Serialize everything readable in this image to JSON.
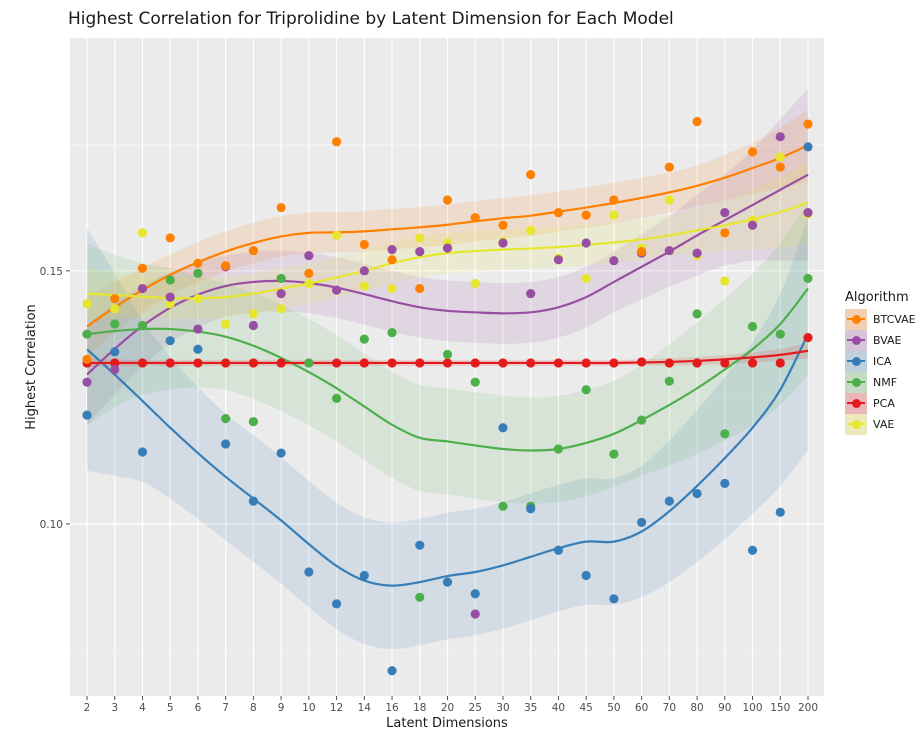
{
  "chart_data": {
    "type": "scatter",
    "title": "Highest Correlation for Triprolidine by Latent Dimension for Each Model",
    "xlabel": "Latent Dimensions",
    "ylabel": "Highest Correlation",
    "categories": [
      "2",
      "3",
      "4",
      "5",
      "6",
      "7",
      "8",
      "9",
      "10",
      "12",
      "14",
      "16",
      "18",
      "20",
      "25",
      "30",
      "35",
      "40",
      "45",
      "50",
      "60",
      "70",
      "80",
      "90",
      "100",
      "150",
      "200"
    ],
    "ylim": [
      0.066,
      0.196
    ],
    "y_ticks": [
      0.1,
      0.15
    ],
    "y_tick_labels": [
      "0.10",
      "0.15"
    ],
    "grid": true,
    "legend_position": "right",
    "legend_title": "Algorithm",
    "series": [
      {
        "name": "BTCVAE",
        "color": "#ff7f00",
        "points": [
          0.1325,
          0.1445,
          0.1505,
          0.1565,
          0.1515,
          0.151,
          0.154,
          0.1625,
          0.1495,
          0.1755,
          0.1552,
          0.1522,
          0.1465,
          0.164,
          0.1605,
          0.159,
          0.169,
          0.1615,
          0.161,
          0.164,
          0.1538,
          0.1705,
          0.1795,
          0.1575,
          0.1735,
          0.1705,
          0.179
        ],
        "smooth": [
          0.139,
          0.1428,
          0.1462,
          0.1492,
          0.1517,
          0.1538,
          0.1555,
          0.1568,
          0.1575,
          0.1576,
          0.1578,
          0.1582,
          0.1586,
          0.1591,
          0.1598,
          0.1604,
          0.1609,
          0.1617,
          0.1625,
          0.1634,
          0.1644,
          0.1655,
          0.1668,
          0.1684,
          0.1703,
          0.1723,
          0.1748
        ],
        "se": [
          0.006,
          0.005,
          0.0045,
          0.004,
          0.004,
          0.004,
          0.004,
          0.004,
          0.004,
          0.004,
          0.004,
          0.004,
          0.004,
          0.004,
          0.004,
          0.004,
          0.004,
          0.004,
          0.004,
          0.004,
          0.004,
          0.004,
          0.004,
          0.0045,
          0.005,
          0.006,
          0.007
        ]
      },
      {
        "name": "BVAE",
        "color": "#984ea3",
        "points": [
          0.128,
          0.1305,
          0.1465,
          0.1448,
          0.1385,
          0.1508,
          0.1392,
          0.1455,
          0.153,
          0.1462,
          0.15,
          0.1542,
          0.1538,
          0.1545,
          0.0822,
          0.1555,
          0.1455,
          0.1522,
          0.1555,
          0.152,
          0.1535,
          0.154,
          0.1535,
          0.1615,
          0.159,
          0.1765,
          0.1615
        ],
        "smooth": [
          0.1295,
          0.1346,
          0.1391,
          0.1427,
          0.1453,
          0.147,
          0.1478,
          0.148,
          0.1476,
          0.1467,
          0.1454,
          0.144,
          0.1428,
          0.1421,
          0.1418,
          0.1416,
          0.1418,
          0.1428,
          0.1448,
          0.1478,
          0.1508,
          0.1538,
          0.157,
          0.16,
          0.163,
          0.166,
          0.169
        ],
        "se": [
          0.01,
          0.009,
          0.008,
          0.007,
          0.0065,
          0.006,
          0.006,
          0.006,
          0.006,
          0.006,
          0.006,
          0.006,
          0.006,
          0.006,
          0.006,
          0.006,
          0.006,
          0.006,
          0.006,
          0.006,
          0.0065,
          0.007,
          0.008,
          0.009,
          0.011,
          0.014,
          0.017
        ]
      },
      {
        "name": "ICA",
        "color": "#377eb8",
        "points": [
          0.1215,
          0.134,
          0.1142,
          0.1362,
          0.1345,
          0.1158,
          0.1045,
          0.114,
          0.0905,
          0.0842,
          0.0898,
          0.071,
          0.0958,
          0.0885,
          0.0862,
          0.119,
          0.103,
          0.0948,
          0.0898,
          0.0852,
          0.1003,
          0.1045,
          0.106,
          0.108,
          0.0948,
          0.1023,
          0.1745
        ],
        "smooth": [
          0.1345,
          0.1295,
          0.1243,
          0.119,
          0.114,
          0.1093,
          0.105,
          0.1007,
          0.096,
          0.0917,
          0.0888,
          0.0878,
          0.0885,
          0.0897,
          0.0905,
          0.0918,
          0.0935,
          0.0952,
          0.0965,
          0.0965,
          0.0985,
          0.1025,
          0.1075,
          0.113,
          0.119,
          0.1265,
          0.1375
        ],
        "se": [
          0.024,
          0.02,
          0.016,
          0.014,
          0.013,
          0.0125,
          0.0125,
          0.0125,
          0.0125,
          0.0125,
          0.0125,
          0.0125,
          0.0125,
          0.0125,
          0.0125,
          0.0125,
          0.0125,
          0.0125,
          0.0125,
          0.0125,
          0.013,
          0.014,
          0.015,
          0.016,
          0.017,
          0.019,
          0.023
        ]
      },
      {
        "name": "NMF",
        "color": "#4daf4a",
        "points": [
          0.1375,
          0.1395,
          0.1392,
          0.1482,
          0.1495,
          0.1208,
          0.1202,
          0.1485,
          0.1318,
          0.1248,
          0.1365,
          0.1378,
          0.0855,
          0.1335,
          0.128,
          0.1035,
          0.1035,
          0.1148,
          0.1265,
          0.1138,
          0.1205,
          0.1282,
          0.1415,
          0.1178,
          0.139,
          0.1375,
          0.1485
        ],
        "smooth": [
          0.1375,
          0.1381,
          0.1385,
          0.1385,
          0.138,
          0.137,
          0.1352,
          0.1328,
          0.13,
          0.1268,
          0.1232,
          0.1196,
          0.117,
          0.1163,
          0.1155,
          0.1148,
          0.1145,
          0.1148,
          0.116,
          0.1178,
          0.1205,
          0.1235,
          0.1268,
          0.1305,
          0.1345,
          0.1395,
          0.1465
        ],
        "se": [
          0.018,
          0.015,
          0.013,
          0.012,
          0.011,
          0.0105,
          0.0105,
          0.0105,
          0.0105,
          0.0105,
          0.0105,
          0.0105,
          0.0105,
          0.0105,
          0.0105,
          0.0105,
          0.0105,
          0.0105,
          0.0105,
          0.0105,
          0.011,
          0.012,
          0.013,
          0.014,
          0.015,
          0.016,
          0.017
        ]
      },
      {
        "name": "PCA",
        "color": "#e41a1c",
        "points": [
          0.1318,
          0.1318,
          0.1318,
          0.1318,
          0.1318,
          0.1318,
          0.1318,
          0.1318,
          0.1318,
          0.1318,
          0.1318,
          0.1318,
          0.1318,
          0.1318,
          0.1318,
          0.1318,
          0.1318,
          0.1318,
          0.1318,
          0.1318,
          0.132,
          0.1318,
          0.1318,
          0.1318,
          0.1318,
          0.1318,
          0.1368
        ],
        "smooth": [
          0.1318,
          0.1318,
          0.1318,
          0.1318,
          0.1318,
          0.1318,
          0.1318,
          0.1318,
          0.1318,
          0.1318,
          0.1318,
          0.1318,
          0.1318,
          0.1318,
          0.1318,
          0.1318,
          0.1318,
          0.1318,
          0.1318,
          0.1318,
          0.1319,
          0.132,
          0.1322,
          0.1325,
          0.1329,
          0.1334,
          0.1342
        ],
        "se": [
          0.0008,
          0.0007,
          0.0006,
          0.0006,
          0.0006,
          0.0006,
          0.0006,
          0.0006,
          0.0006,
          0.0006,
          0.0006,
          0.0006,
          0.0006,
          0.0006,
          0.0006,
          0.0006,
          0.0006,
          0.0006,
          0.0006,
          0.0006,
          0.0006,
          0.0007,
          0.0008,
          0.0009,
          0.001,
          0.0012,
          0.0015
        ]
      },
      {
        "name": "VAE",
        "color": "#e6e62e",
        "points": [
          0.1435,
          0.1425,
          0.1575,
          0.1435,
          0.1445,
          0.1395,
          0.1415,
          0.1425,
          0.1475,
          0.157,
          0.147,
          0.1465,
          0.1565,
          0.1555,
          0.1475,
          0.1558,
          0.158,
          0.1525,
          0.1485,
          0.161,
          0.1545,
          0.164,
          0.153,
          0.148,
          0.16,
          0.1725,
          0.1612
        ],
        "smooth": [
          0.1455,
          0.1452,
          0.1449,
          0.1446,
          0.1446,
          0.1448,
          0.1455,
          0.1465,
          0.1475,
          0.1487,
          0.15,
          0.1515,
          0.1527,
          0.1535,
          0.1539,
          0.1542,
          0.1544,
          0.1547,
          0.1551,
          0.1556,
          0.1562,
          0.157,
          0.158,
          0.159,
          0.1602,
          0.1616,
          0.1635
        ],
        "se": [
          0.005,
          0.0045,
          0.004,
          0.004,
          0.004,
          0.004,
          0.004,
          0.004,
          0.004,
          0.004,
          0.004,
          0.004,
          0.004,
          0.004,
          0.004,
          0.004,
          0.004,
          0.004,
          0.004,
          0.004,
          0.004,
          0.004,
          0.0045,
          0.005,
          0.006,
          0.007,
          0.008
        ]
      }
    ]
  }
}
